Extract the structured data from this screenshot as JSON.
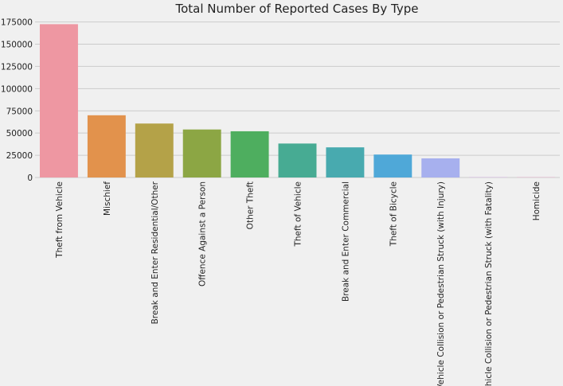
{
  "chart_data": {
    "type": "bar",
    "title": "Total Number of Reported Cases By Type",
    "xlabel": "",
    "ylabel": "",
    "ylim": [
      0,
      180000
    ],
    "yticks": [
      0,
      25000,
      50000,
      75000,
      100000,
      125000,
      150000,
      175000
    ],
    "ytick_labels": [
      "0",
      "25000",
      "50000",
      "75000",
      "100000",
      "125000",
      "150000",
      "175000"
    ],
    "grid": "horizontal",
    "categories": [
      "Theft from Vehicle",
      "Mischief",
      "Break and Enter Residential/Other",
      "Offence Against a Person",
      "Other Theft",
      "Theft of Vehicle",
      "Break and Enter Commercial",
      "Theft of Bicycle",
      "Vehicle Collision or Pedestrian Struck (with Injury)",
      "Vehicle Collision or Pedestrian Struck (with Fatality)",
      "Homicide"
    ],
    "values": [
      172500,
      70000,
      60700,
      54000,
      52000,
      38200,
      33900,
      25800,
      21500,
      300,
      250
    ],
    "colors": [
      "#ee97a2",
      "#e2924c",
      "#b4a248",
      "#8ca644",
      "#4eae5f",
      "#47ab93",
      "#48aaaf",
      "#4fa8d8",
      "#a7b0ee",
      "#d6a3e9",
      "#ef95c7"
    ]
  }
}
